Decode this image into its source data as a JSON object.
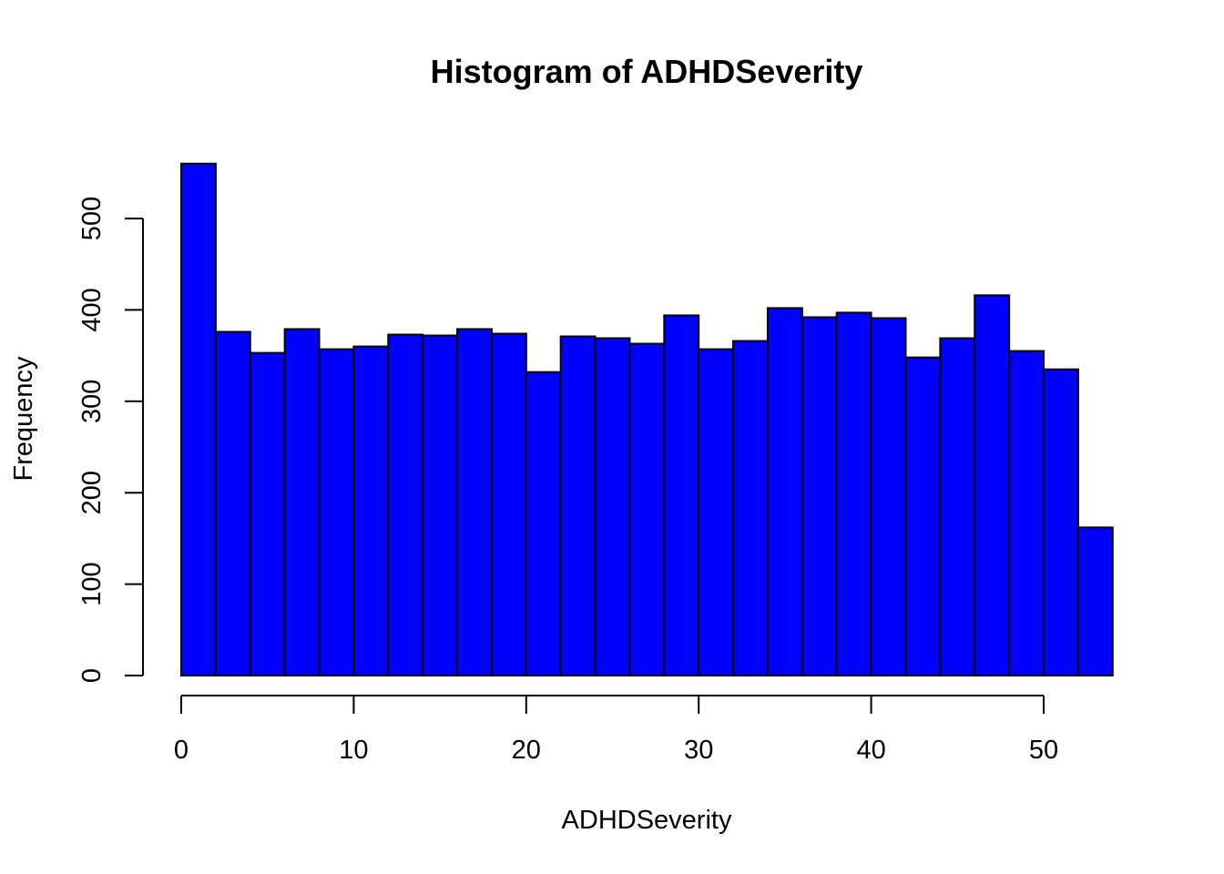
{
  "chart_data": {
    "type": "bar",
    "title": "Histogram of ADHDSeverity",
    "xlabel": "ADHDSeverity",
    "ylabel": "Frequency",
    "bin_width": 2,
    "bins": [
      {
        "start": 0,
        "end": 2,
        "count": 560
      },
      {
        "start": 2,
        "end": 4,
        "count": 376
      },
      {
        "start": 4,
        "end": 6,
        "count": 353
      },
      {
        "start": 6,
        "end": 8,
        "count": 379
      },
      {
        "start": 8,
        "end": 10,
        "count": 357
      },
      {
        "start": 10,
        "end": 12,
        "count": 360
      },
      {
        "start": 12,
        "end": 14,
        "count": 373
      },
      {
        "start": 14,
        "end": 16,
        "count": 372
      },
      {
        "start": 16,
        "end": 18,
        "count": 379
      },
      {
        "start": 18,
        "end": 20,
        "count": 374
      },
      {
        "start": 20,
        "end": 22,
        "count": 332
      },
      {
        "start": 22,
        "end": 24,
        "count": 371
      },
      {
        "start": 24,
        "end": 26,
        "count": 369
      },
      {
        "start": 26,
        "end": 28,
        "count": 363
      },
      {
        "start": 28,
        "end": 30,
        "count": 394
      },
      {
        "start": 30,
        "end": 32,
        "count": 357
      },
      {
        "start": 32,
        "end": 34,
        "count": 366
      },
      {
        "start": 34,
        "end": 36,
        "count": 402
      },
      {
        "start": 36,
        "end": 38,
        "count": 392
      },
      {
        "start": 38,
        "end": 40,
        "count": 397
      },
      {
        "start": 40,
        "end": 42,
        "count": 391
      },
      {
        "start": 42,
        "end": 44,
        "count": 348
      },
      {
        "start": 44,
        "end": 46,
        "count": 369
      },
      {
        "start": 46,
        "end": 48,
        "count": 416
      },
      {
        "start": 48,
        "end": 50,
        "count": 355
      },
      {
        "start": 50,
        "end": 52,
        "count": 335
      },
      {
        "start": 52,
        "end": 54,
        "count": 162
      }
    ],
    "xlim": [
      0,
      54
    ],
    "ylim": [
      0,
      560
    ],
    "x_ticks": [
      0,
      10,
      20,
      30,
      40,
      50
    ],
    "y_ticks": [
      0,
      100,
      200,
      300,
      400,
      500
    ],
    "bar_color": "#0000ff",
    "bar_border_color": "#000000",
    "grid": false,
    "legend": "none"
  }
}
